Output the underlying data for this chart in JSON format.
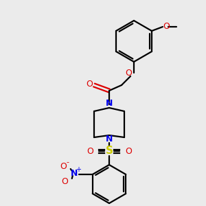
{
  "bg_color": "#ebebeb",
  "bond_color": "#000000",
  "N_color": "#0000ee",
  "O_color": "#dd0000",
  "S_color": "#cccc00",
  "figsize": [
    3.0,
    3.0
  ],
  "dpi": 100,
  "xlim": [
    0,
    300
  ],
  "ylim": [
    0,
    300
  ]
}
